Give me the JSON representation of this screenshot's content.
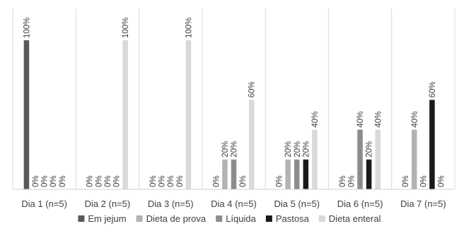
{
  "chart_data": {
    "type": "bar",
    "categories": [
      "Dia 1 (n=5)",
      "Dia 2 (n=5)",
      "Dia 3 (n=5)",
      "Dia 4 (n=5)",
      "Dia 5 (n=5)",
      "Dia 6 (n=5)",
      "Dia 7 (n=5)"
    ],
    "series": [
      {
        "name": "Em jejum",
        "color": "#595959",
        "values": [
          100,
          0,
          0,
          0,
          0,
          0,
          0
        ],
        "labels": [
          "100%",
          "0%",
          "0%",
          "0%",
          "0%",
          "0%",
          "0%"
        ]
      },
      {
        "name": "Dieta de prova",
        "color": "#b3b3b3",
        "values": [
          0,
          0,
          0,
          20,
          20,
          0,
          40
        ],
        "labels": [
          "0%",
          "0%",
          "0%",
          "20%",
          "20%",
          "0%",
          "40%"
        ]
      },
      {
        "name": "Líquida",
        "color": "#8c8c8c",
        "values": [
          0,
          0,
          0,
          20,
          20,
          40,
          0
        ],
        "labels": [
          "0%",
          "0%",
          "0%",
          "20%",
          "20%",
          "40%",
          "0%"
        ]
      },
      {
        "name": "Pastosa",
        "color": "#1a1a1a",
        "values": [
          0,
          0,
          0,
          0,
          20,
          20,
          60
        ],
        "labels": [
          "0%",
          "0%",
          "0%",
          "0%",
          "20%",
          "20%",
          "60%"
        ]
      },
      {
        "name": "Dieta enteral",
        "color": "#d9d9d9",
        "values": [
          0,
          100,
          100,
          60,
          40,
          40,
          0
        ],
        "labels": [
          "0%",
          "100%",
          "100%",
          "60%",
          "40%",
          "40%",
          "0%"
        ]
      }
    ],
    "ylim": [
      0,
      100
    ],
    "grid": "vertical separators between categories",
    "legend_position": "bottom",
    "title": "",
    "xlabel": "",
    "ylabel": ""
  }
}
